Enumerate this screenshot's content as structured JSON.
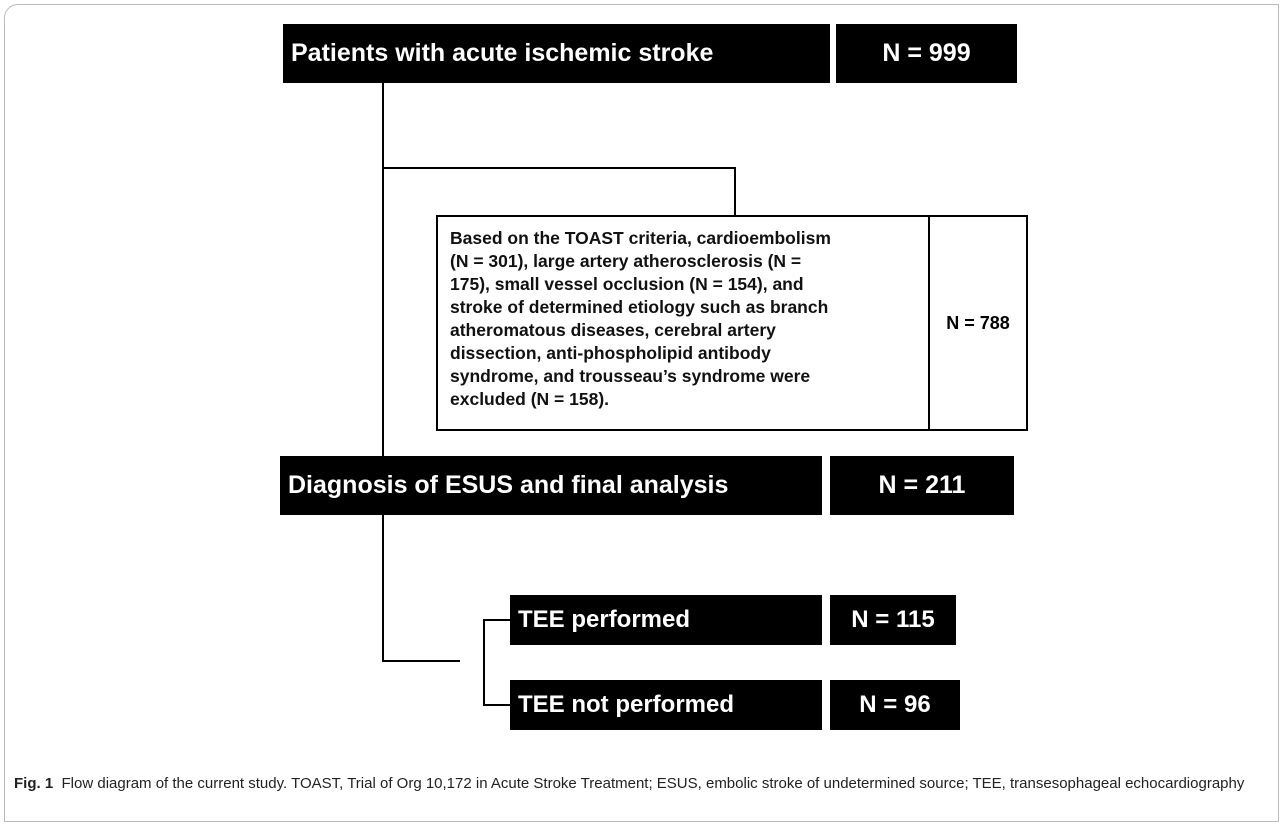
{
  "nodes": [
    {
      "label": "Patients with acute ischemic stroke",
      "count": "N = 999"
    },
    {
      "label_lines": [
        "Based on the TOAST criteria, cardioembolism",
        "(N = 301), large artery atherosclerosis (N =",
        "175), small vessel occlusion (N = 154), and",
        "stroke of determined etiology such as branch",
        "atheromatous diseases, cerebral artery",
        "dissection, anti-phospholipid antibody",
        "syndrome, and trousseau’s syndrome were",
        "excluded (N = 158)."
      ],
      "count": "N = 788"
    },
    {
      "label": "Diagnosis of ESUS and final analysis",
      "count": "N = 211"
    },
    {
      "label": "TEE performed",
      "count": "N = 115"
    },
    {
      "label": "TEE not performed",
      "count": "N = 96"
    }
  ],
  "caption": {
    "label": "Fig. 1",
    "text": "Flow diagram of the current study. TOAST, Trial of Org 10,172 in Acute Stroke Treatment; ESUS, embolic stroke of undetermined source; TEE, transesophageal echocardiography"
  }
}
